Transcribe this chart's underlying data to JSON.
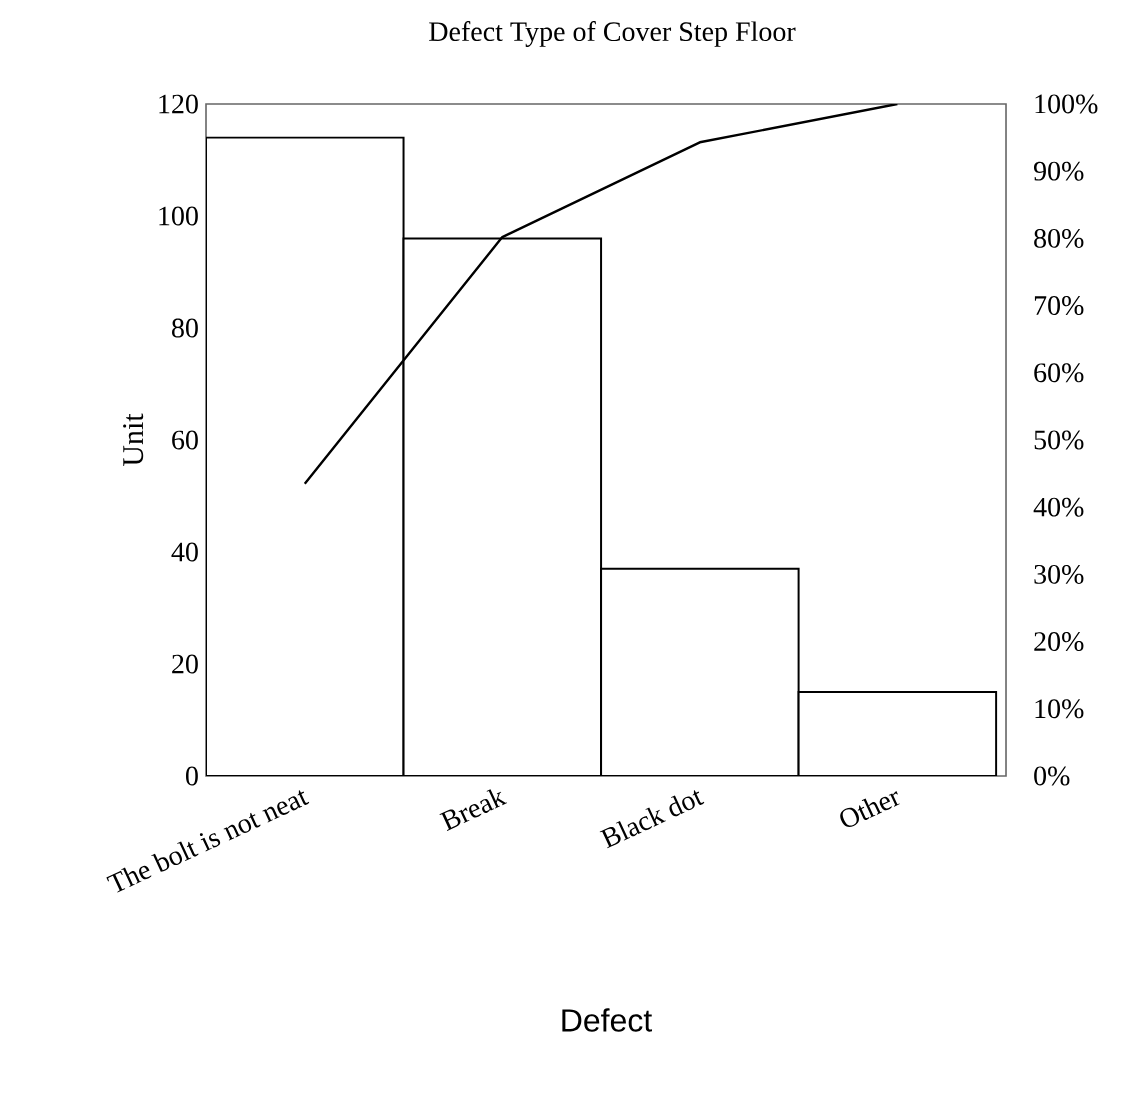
{
  "chart_data": {
    "type": "bar",
    "title": "Defect Type of Cover Step Floor",
    "xlabel": "Defect",
    "ylabel": "Unit",
    "categories": [
      "The bolt is not neat",
      "Break",
      "Black dot",
      "Other"
    ],
    "series": [
      {
        "color": "#ffffff",
        "values": [
          114,
          96,
          37,
          15
        ]
      },
      {
        "type": "line",
        "axis": "y2",
        "color": "#000000",
        "values": [
          43.5,
          80.2,
          94.3,
          100
        ]
      }
    ],
    "ylim": [
      0,
      120
    ],
    "yticks": [
      0,
      20,
      40,
      60,
      80,
      100,
      120
    ],
    "y2lim": [
      0,
      100
    ],
    "y2ticks": [
      {
        "value": 0,
        "label": "0%"
      },
      {
        "value": 10,
        "label": "10%"
      },
      {
        "value": 20,
        "label": "20%"
      },
      {
        "value": 30,
        "label": "30%"
      },
      {
        "value": 40,
        "label": "40%"
      },
      {
        "value": 50,
        "label": "50%"
      },
      {
        "value": 60,
        "label": "60%"
      },
      {
        "value": 70,
        "label": "70%"
      },
      {
        "value": 80,
        "label": "80%"
      },
      {
        "value": 90,
        "label": "90%"
      },
      {
        "value": 100,
        "label": "100%"
      }
    ],
    "grid": false
  }
}
